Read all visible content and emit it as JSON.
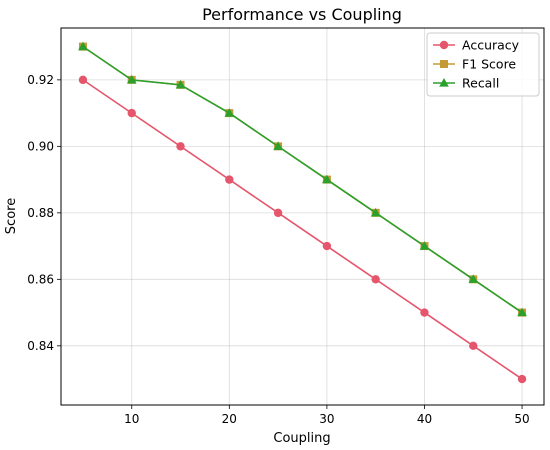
{
  "chart_data": {
    "type": "line",
    "title": "Performance vs Coupling",
    "xlabel": "Coupling",
    "ylabel": "Score",
    "x": [
      5,
      10,
      15,
      20,
      25,
      30,
      35,
      40,
      45,
      50
    ],
    "xlim": [
      2.75,
      52.25
    ],
    "ylim": [
      0.8222,
      0.9356
    ],
    "xticks": [
      10,
      20,
      30,
      40,
      50
    ],
    "xtick_labels": [
      "10",
      "20",
      "30",
      "40",
      "50"
    ],
    "yticks": [
      0.84,
      0.86,
      0.88,
      0.9,
      0.92
    ],
    "ytick_labels": [
      "0.84",
      "0.86",
      "0.88",
      "0.90",
      "0.92"
    ],
    "grid": true,
    "legend_position": "top-right",
    "series": [
      {
        "name": "Accuracy",
        "color": "#e5566d",
        "marker": "circle",
        "values": [
          0.92,
          0.91,
          0.9,
          0.89,
          0.88,
          0.87,
          0.86,
          0.85,
          0.84,
          0.83
        ]
      },
      {
        "name": "F1 Score",
        "color": "#c49a35",
        "marker": "square",
        "values": [
          0.93,
          0.92,
          0.9185,
          0.91,
          0.9,
          0.89,
          0.88,
          0.87,
          0.86,
          0.85
        ]
      },
      {
        "name": "Recall",
        "color": "#2ca02c",
        "marker": "triangle",
        "values": [
          0.93,
          0.92,
          0.9185,
          0.91,
          0.9,
          0.89,
          0.88,
          0.87,
          0.86,
          0.85
        ]
      }
    ]
  }
}
